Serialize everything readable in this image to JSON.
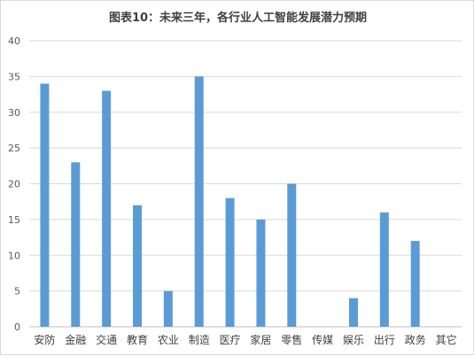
{
  "chart_data": {
    "type": "bar",
    "title": "图表10：未来三年，各行业人工智能发展潜力预期",
    "xlabel": "",
    "ylabel": "",
    "categories": [
      "安防",
      "金融",
      "交通",
      "教育",
      "农业",
      "制造",
      "医疗",
      "家居",
      "零售",
      "传媒",
      "娱乐",
      "出行",
      "政务",
      "其它"
    ],
    "values": [
      34,
      23,
      33,
      17,
      5,
      35,
      18,
      15,
      20,
      0,
      4,
      16,
      12,
      0
    ],
    "ylim": [
      0,
      40
    ],
    "yticks": [
      0,
      5,
      10,
      15,
      20,
      25,
      30,
      35,
      40
    ],
    "grid": true,
    "legend": "none",
    "bar_color": "#5b9bd5",
    "grid_color": "#d9d9d9"
  }
}
